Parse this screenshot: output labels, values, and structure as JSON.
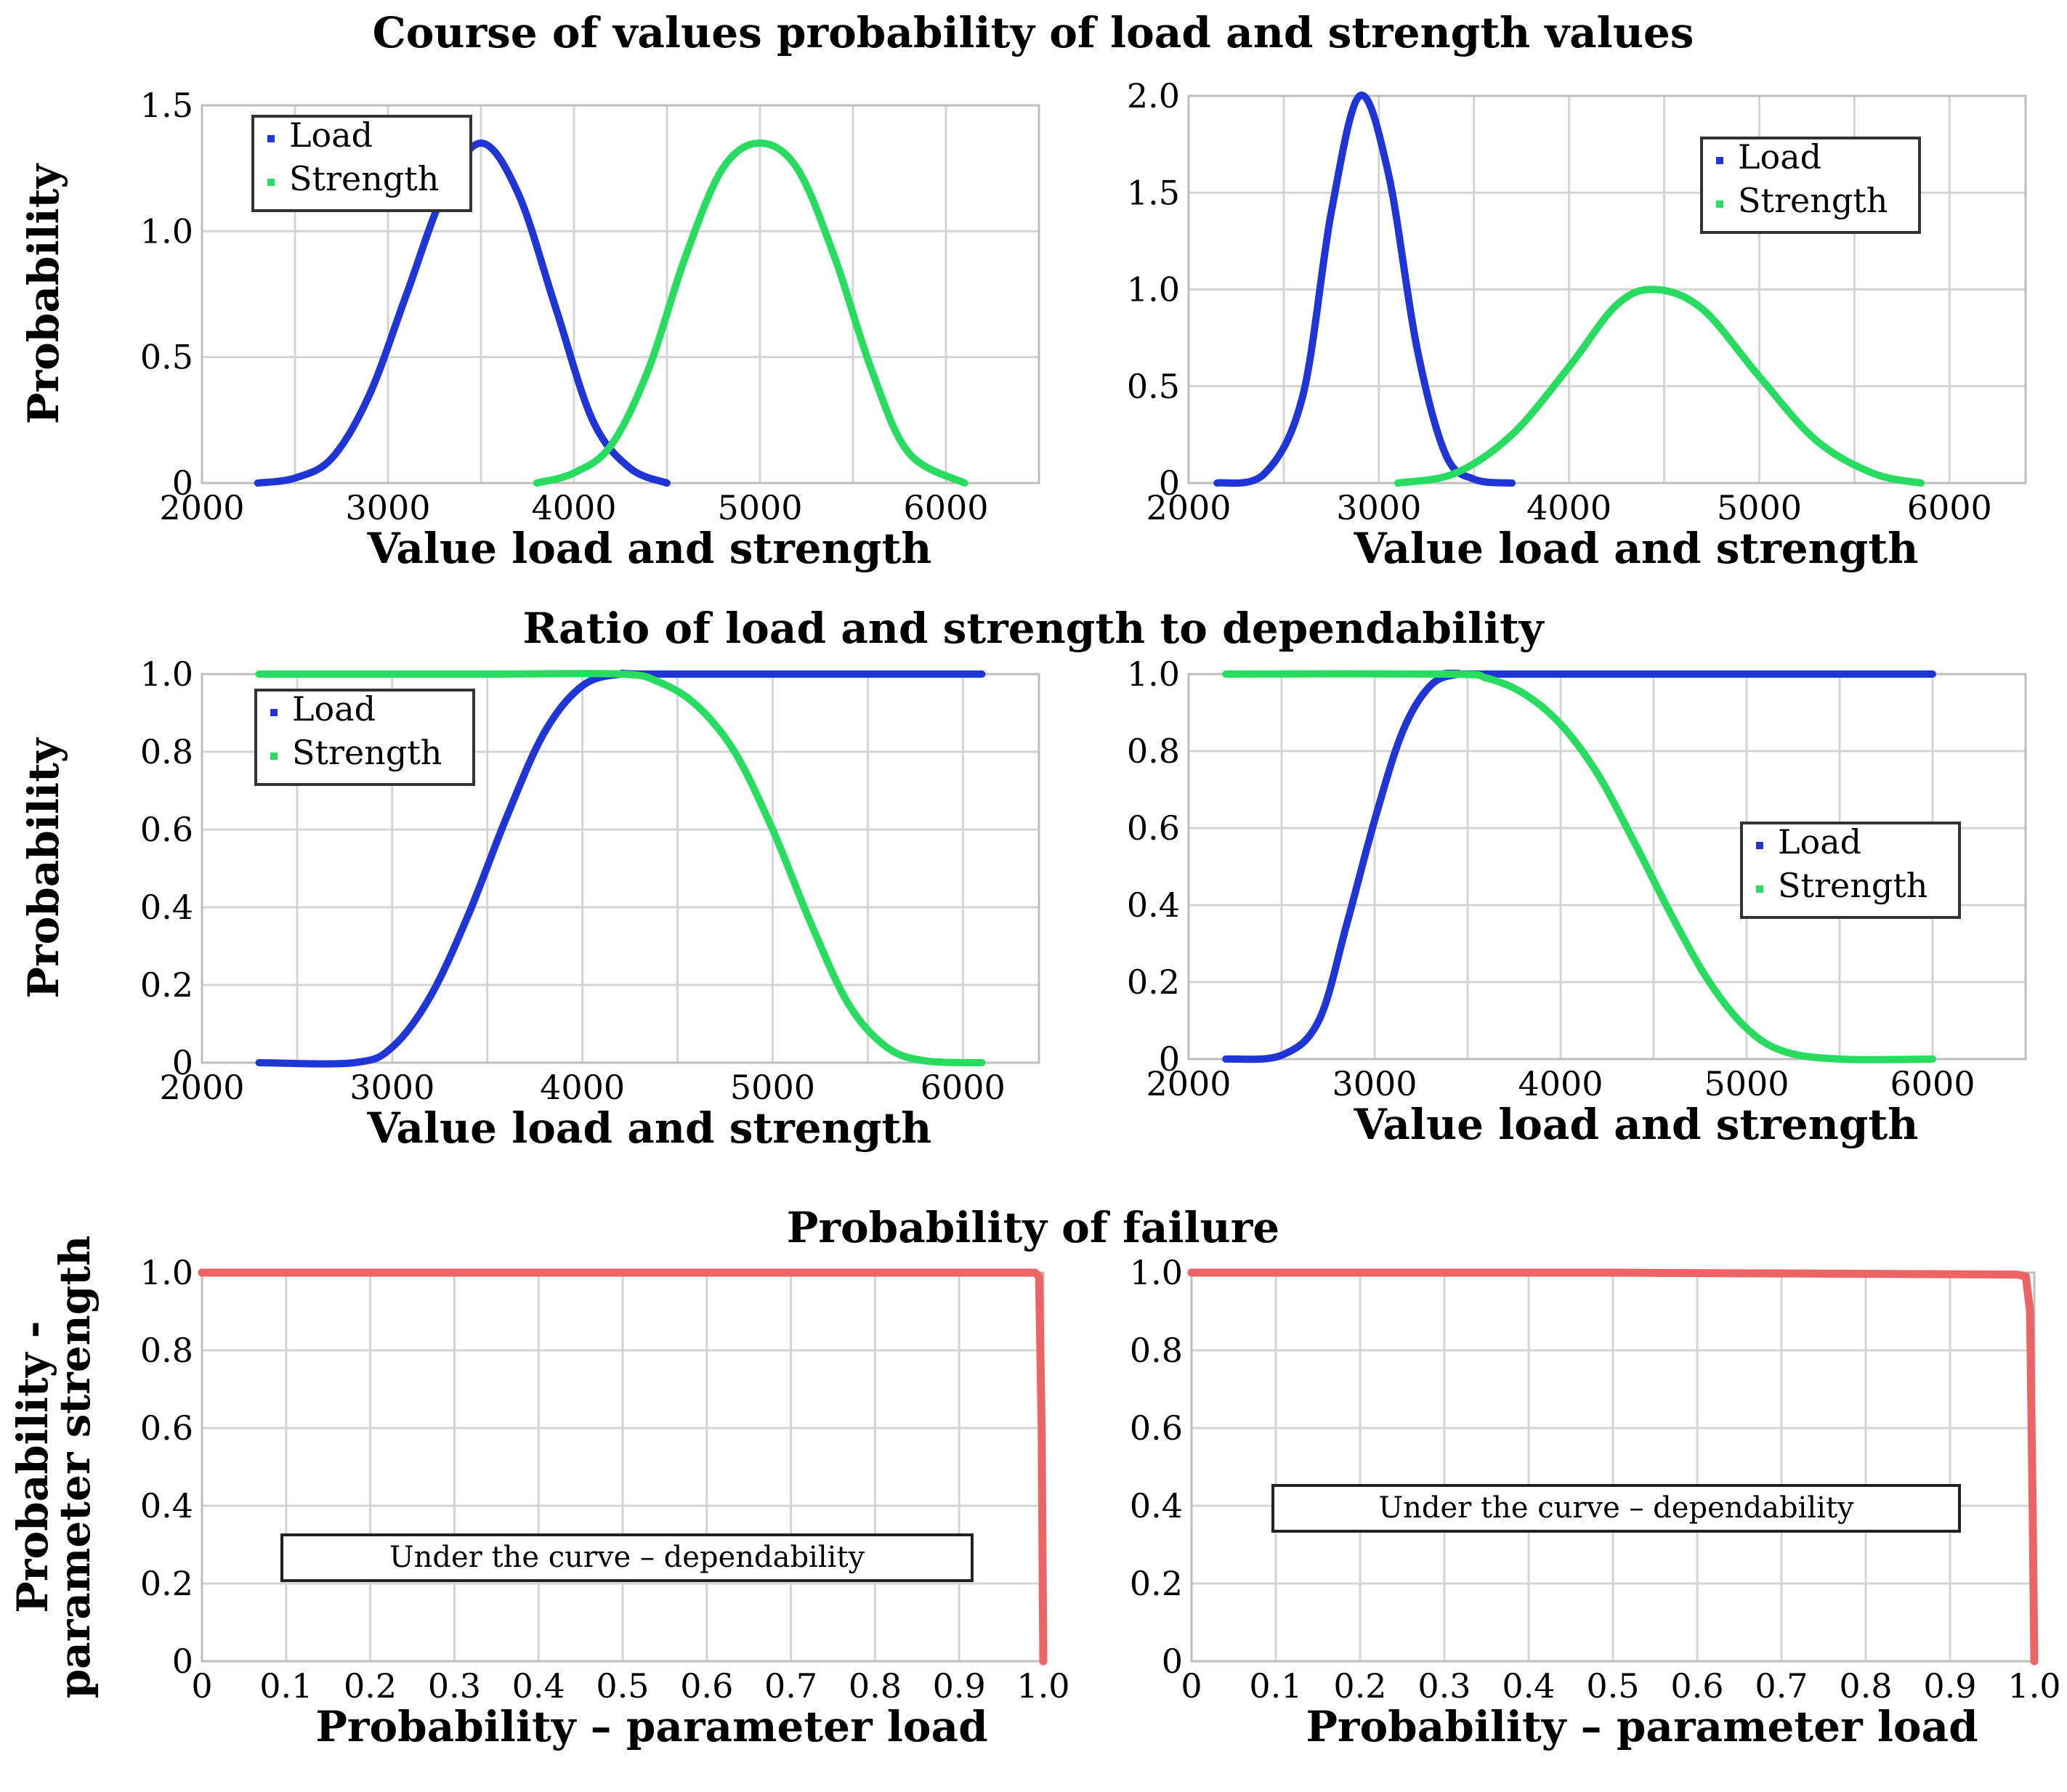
{
  "titles": {
    "row1": "Course of values probability of load and strength values",
    "row2": "Ratio of load and strength to dependability",
    "row3": "Probability of failure"
  },
  "colors": {
    "load": "#1f35d6",
    "strength": "#27dc5e",
    "failure": "#ec6464"
  },
  "chart_data": [
    {
      "id": "pdf-left",
      "type": "line",
      "xlabel": "Value load and strength",
      "ylabel": "Probability",
      "xlim": [
        2000,
        6500
      ],
      "ylim": [
        0,
        1.5
      ],
      "xticks": [
        2000,
        3000,
        4000,
        5000,
        6000
      ],
      "yticks": [
        0,
        0.5,
        1.0,
        1.5
      ],
      "ytick_labels": [
        "0",
        "0.5",
        "1.0",
        "1.5"
      ],
      "legend": [
        "Load",
        "Strength"
      ],
      "legend_position": "top-left",
      "series": [
        {
          "name": "Load",
          "color": "load",
          "x": [
            2300,
            2500,
            2700,
            2900,
            3100,
            3300,
            3500,
            3700,
            3900,
            4100,
            4300,
            4500
          ],
          "y": [
            0.0,
            0.02,
            0.1,
            0.35,
            0.75,
            1.15,
            1.35,
            1.15,
            0.7,
            0.25,
            0.06,
            0.0
          ]
        },
        {
          "name": "Strength",
          "color": "strength",
          "x": [
            3800,
            4000,
            4200,
            4400,
            4600,
            4800,
            5000,
            5200,
            5400,
            5600,
            5800,
            6100
          ],
          "y": [
            0.0,
            0.04,
            0.15,
            0.45,
            0.9,
            1.25,
            1.35,
            1.25,
            0.9,
            0.45,
            0.12,
            0.0
          ]
        }
      ]
    },
    {
      "id": "pdf-right",
      "type": "line",
      "xlabel": "Value load and strength",
      "ylabel": "",
      "xlim": [
        2000,
        6400
      ],
      "ylim": [
        0,
        2.0
      ],
      "xticks": [
        2000,
        3000,
        4000,
        5000,
        6000
      ],
      "yticks": [
        0,
        0.5,
        1.0,
        1.5,
        2.0
      ],
      "ytick_labels": [
        "0",
        "0.5",
        "1.0",
        "1.5",
        "2.0"
      ],
      "legend": [
        "Load",
        "Strength"
      ],
      "legend_position": "top-right",
      "series": [
        {
          "name": "Load",
          "color": "load",
          "x": [
            2150,
            2400,
            2600,
            2750,
            2900,
            3050,
            3200,
            3350,
            3500,
            3700
          ],
          "y": [
            0.0,
            0.05,
            0.45,
            1.4,
            2.0,
            1.6,
            0.7,
            0.15,
            0.02,
            0.0
          ]
        },
        {
          "name": "Strength",
          "color": "strength",
          "x": [
            3100,
            3400,
            3700,
            4000,
            4250,
            4450,
            4700,
            5000,
            5300,
            5600,
            5850
          ],
          "y": [
            0.0,
            0.05,
            0.25,
            0.6,
            0.92,
            1.0,
            0.9,
            0.55,
            0.22,
            0.05,
            0.0
          ]
        }
      ]
    },
    {
      "id": "cdf-left",
      "type": "line",
      "xlabel": "Value load and strength",
      "ylabel": "Probability",
      "xlim": [
        2000,
        6400
      ],
      "ylim": [
        0,
        1.0
      ],
      "xticks": [
        2000,
        3000,
        4000,
        5000,
        6000
      ],
      "yticks": [
        0,
        0.2,
        0.4,
        0.6,
        0.8,
        1.0
      ],
      "ytick_labels": [
        "0",
        "0.2",
        "0.4",
        "0.6",
        "0.8",
        "1.0"
      ],
      "legend": [
        "Load",
        "Strength"
      ],
      "legend_position": "top-left",
      "series": [
        {
          "name": "Load",
          "color": "load",
          "x": [
            2300,
            2800,
            3000,
            3200,
            3400,
            3600,
            3800,
            4000,
            4200,
            4400,
            6100
          ],
          "y": [
            0.0,
            0.0,
            0.04,
            0.17,
            0.38,
            0.63,
            0.85,
            0.97,
            1.0,
            1.0,
            1.0
          ]
        },
        {
          "name": "Strength",
          "color": "strength",
          "x": [
            2300,
            3500,
            4200,
            4400,
            4600,
            4800,
            5000,
            5200,
            5400,
            5600,
            5800,
            6100
          ],
          "y": [
            1.0,
            1.0,
            1.0,
            0.98,
            0.92,
            0.8,
            0.6,
            0.36,
            0.15,
            0.04,
            0.005,
            0.0
          ]
        }
      ]
    },
    {
      "id": "cdf-right",
      "type": "line",
      "xlabel": "Value load and strength",
      "ylabel": "",
      "xlim": [
        2000,
        6500
      ],
      "ylim": [
        0,
        1.0
      ],
      "xticks": [
        2000,
        3000,
        4000,
        5000,
        6000
      ],
      "yticks": [
        0,
        0.2,
        0.4,
        0.6,
        0.8,
        1.0
      ],
      "ytick_labels": [
        "0",
        "0.2",
        "0.4",
        "0.6",
        "0.8",
        "1.0"
      ],
      "legend": [
        "Load",
        "Strength"
      ],
      "legend_position": "right",
      "series": [
        {
          "name": "Load",
          "color": "load",
          "x": [
            2200,
            2500,
            2700,
            2850,
            3000,
            3150,
            3300,
            3450,
            3600,
            6000
          ],
          "y": [
            0.0,
            0.01,
            0.1,
            0.35,
            0.62,
            0.85,
            0.97,
            1.0,
            1.0,
            1.0
          ]
        },
        {
          "name": "Strength",
          "color": "strength",
          "x": [
            2200,
            3400,
            3600,
            3800,
            4000,
            4200,
            4400,
            4600,
            4800,
            5000,
            5200,
            5500,
            6000
          ],
          "y": [
            1.0,
            1.0,
            0.99,
            0.95,
            0.87,
            0.74,
            0.56,
            0.37,
            0.2,
            0.08,
            0.02,
            0.0,
            0.0
          ]
        }
      ]
    },
    {
      "id": "failure-left",
      "type": "line",
      "xlabel": "Probability – parameter load",
      "ylabel": "Probability - parameter strength",
      "xlim": [
        0,
        1.0
      ],
      "ylim": [
        0,
        1.0
      ],
      "xticks": [
        0,
        0.1,
        0.2,
        0.3,
        0.4,
        0.5,
        0.6,
        0.7,
        0.8,
        0.9,
        1.0
      ],
      "xtick_labels": [
        "0",
        "0.1",
        "0.2",
        "0.3",
        "0.4",
        "0.5",
        "0.6",
        "0.7",
        "0.8",
        "0.9",
        "1.0"
      ],
      "yticks": [
        0,
        0.2,
        0.4,
        0.6,
        0.8,
        1.0
      ],
      "ytick_labels": [
        "0",
        "0.2",
        "0.4",
        "0.6",
        "0.8",
        "1.0"
      ],
      "annotation": "Under the curve – dependability",
      "series": [
        {
          "name": "Failure",
          "color": "failure",
          "x": [
            0,
            0.5,
            0.99,
            0.995,
            0.998,
            1.0
          ],
          "y": [
            1.0,
            1.0,
            1.0,
            0.99,
            0.6,
            0.0
          ]
        }
      ]
    },
    {
      "id": "failure-right",
      "type": "line",
      "xlabel": "Probability – parameter load",
      "ylabel": "",
      "xlim": [
        0,
        1.0
      ],
      "ylim": [
        0,
        1.0
      ],
      "xticks": [
        0,
        0.1,
        0.2,
        0.3,
        0.4,
        0.5,
        0.6,
        0.7,
        0.8,
        0.9,
        1.0
      ],
      "xtick_labels": [
        "0",
        "0.1",
        "0.2",
        "0.3",
        "0.4",
        "0.5",
        "0.6",
        "0.7",
        "0.8",
        "0.9",
        "1.0"
      ],
      "yticks": [
        0,
        0.2,
        0.4,
        0.6,
        0.8,
        1.0
      ],
      "ytick_labels": [
        "0",
        "0.2",
        "0.4",
        "0.6",
        "0.8",
        "1.0"
      ],
      "annotation": "Under the curve – dependability",
      "series": [
        {
          "name": "Failure",
          "color": "failure",
          "x": [
            0,
            0.5,
            0.98,
            0.99,
            0.995,
            0.998,
            1.0
          ],
          "y": [
            1.0,
            1.0,
            0.995,
            0.99,
            0.9,
            0.4,
            0.0
          ]
        }
      ]
    }
  ]
}
